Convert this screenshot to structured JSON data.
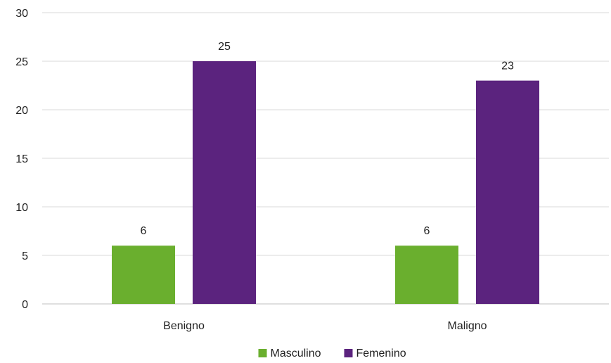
{
  "chart_data": {
    "type": "bar",
    "categories": [
      "Benigno",
      "Maligno"
    ],
    "series": [
      {
        "name": "Masculino",
        "values": [
          6,
          6
        ],
        "color": "#6aaf2e"
      },
      {
        "name": "Femenino",
        "values": [
          25,
          23
        ],
        "color": "#5b237e"
      }
    ],
    "ylim": [
      0,
      30
    ],
    "yticks": [
      0,
      5,
      10,
      15,
      20,
      25,
      30
    ],
    "grid": true,
    "legend_position": "bottom",
    "data_labels": true
  },
  "colors": {
    "grid": "#d9d9d9",
    "axis": "#bfbfbf",
    "text": "#222222"
  }
}
